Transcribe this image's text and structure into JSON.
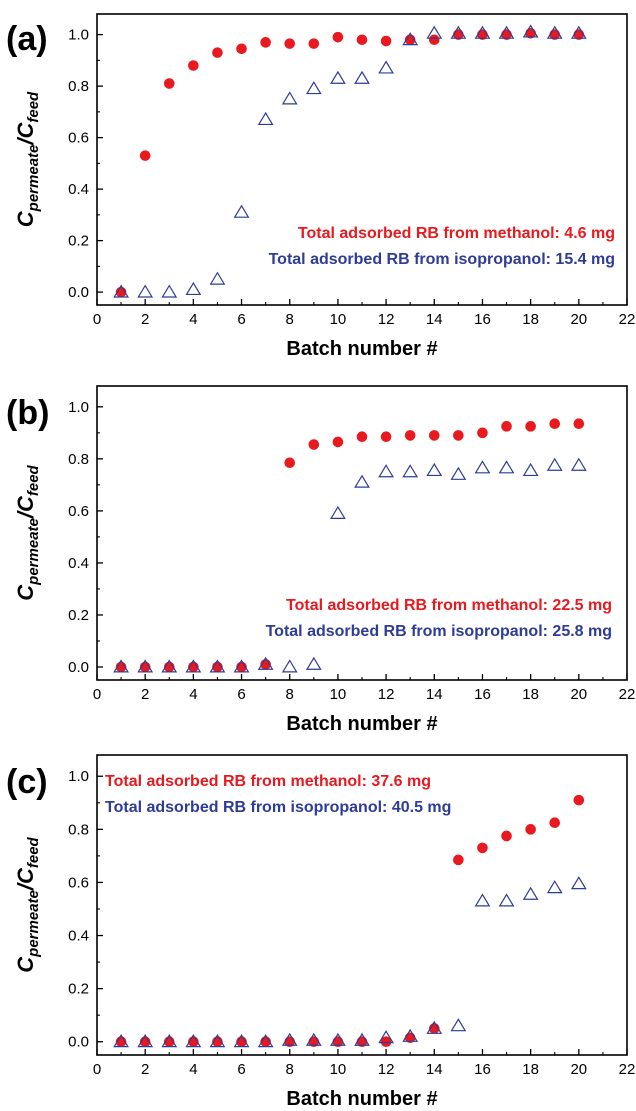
{
  "figure": {
    "series_colors": {
      "methanol": "#e8191f",
      "isopropanol": "#2e3c96"
    },
    "ylabel_main": "C",
    "ylabel_sub1": "permeate",
    "ylabel_sep": "/",
    "ylabel_main2": "C",
    "ylabel_sub2": "feed",
    "xlabel": "Batch number #"
  },
  "chart_data": [
    {
      "panel": "(a)",
      "type": "scatter",
      "xlabel": "Batch number #",
      "ylabel": "Cpermeate/Cfeed",
      "xlim": [
        0,
        22
      ],
      "ylim": [
        -0.05,
        1.08
      ],
      "xticks": [
        0,
        2,
        4,
        6,
        8,
        10,
        12,
        14,
        16,
        18,
        20,
        22
      ],
      "yticks": [
        0.0,
        0.2,
        0.4,
        0.6,
        0.8,
        1.0
      ],
      "ytick_labels": [
        "0.0",
        "0.2",
        "0.4",
        "0.6",
        "0.8",
        "1.0"
      ],
      "grid": false,
      "annotations": [
        {
          "text": "Total adsorbed RB from methanol: 4.6 mg",
          "color": "#e8191f"
        },
        {
          "text": "Total adsorbed RB from isopropanol: 15.4 mg",
          "color": "#2e3c96"
        }
      ],
      "series": [
        {
          "key": "methanol",
          "marker": "filled-circle",
          "color": "#e8191f",
          "x": [
            1,
            2,
            3,
            4,
            5,
            6,
            7,
            8,
            9,
            10,
            11,
            12,
            13,
            14,
            15,
            16,
            17,
            18,
            19,
            20
          ],
          "y": [
            0.0,
            0.53,
            0.81,
            0.88,
            0.93,
            0.945,
            0.97,
            0.965,
            0.965,
            0.99,
            0.98,
            0.975,
            0.98,
            0.98,
            1.0,
            1.0,
            1.0,
            1.005,
            1.0,
            1.0
          ]
        },
        {
          "key": "isopropanol",
          "marker": "open-triangle",
          "color": "#2e3c96",
          "x": [
            1,
            2,
            3,
            4,
            5,
            6,
            7,
            8,
            9,
            10,
            11,
            12,
            13,
            14,
            15,
            16,
            17,
            18,
            19,
            20
          ],
          "y": [
            0.0,
            0.0,
            0.0,
            0.01,
            0.05,
            0.31,
            0.67,
            0.75,
            0.79,
            0.83,
            0.83,
            0.87,
            0.98,
            1.005,
            1.005,
            1.005,
            1.005,
            1.01,
            1.005,
            1.005
          ]
        }
      ]
    },
    {
      "panel": "(b)",
      "type": "scatter",
      "xlabel": "Batch number #",
      "ylabel": "Cpermeate/Cfeed",
      "xlim": [
        0,
        22
      ],
      "ylim": [
        -0.05,
        1.08
      ],
      "xticks": [
        0,
        2,
        4,
        6,
        8,
        10,
        12,
        14,
        16,
        18,
        20,
        22
      ],
      "yticks": [
        0.0,
        0.2,
        0.4,
        0.6,
        0.8,
        1.0
      ],
      "ytick_labels": [
        "0.0",
        "0.2",
        "0.4",
        "0.6",
        "0.8",
        "1.0"
      ],
      "grid": false,
      "annotations": [
        {
          "text": "Total adsorbed RB from methanol: 22.5 mg",
          "color": "#e8191f"
        },
        {
          "text": "Total adsorbed RB from isopropanol: 25.8 mg",
          "color": "#2e3c96"
        }
      ],
      "series": [
        {
          "key": "methanol",
          "marker": "filled-circle",
          "color": "#e8191f",
          "x": [
            1,
            2,
            3,
            4,
            5,
            6,
            7,
            8,
            9,
            10,
            11,
            12,
            13,
            14,
            15,
            16,
            17,
            18,
            19,
            20
          ],
          "y": [
            0.0,
            0.0,
            0.0,
            0.0,
            0.0,
            0.0,
            0.01,
            0.785,
            0.855,
            0.865,
            0.885,
            0.885,
            0.89,
            0.89,
            0.89,
            0.9,
            0.925,
            0.925,
            0.935,
            0.935
          ]
        },
        {
          "key": "isopropanol",
          "marker": "open-triangle",
          "color": "#2e3c96",
          "x": [
            1,
            2,
            3,
            4,
            5,
            6,
            7,
            8,
            9,
            10,
            11,
            12,
            13,
            14,
            15,
            16,
            17,
            18,
            19,
            20
          ],
          "y": [
            0.0,
            0.0,
            0.0,
            0.0,
            0.0,
            0.0,
            0.01,
            0.0,
            0.01,
            0.59,
            0.71,
            0.75,
            0.75,
            0.755,
            0.74,
            0.765,
            0.765,
            0.755,
            0.775,
            0.775
          ]
        }
      ]
    },
    {
      "panel": "(c)",
      "type": "scatter",
      "xlabel": "Batch number #",
      "ylabel": "Cpermeate/Cfeed",
      "xlim": [
        0,
        22
      ],
      "ylim": [
        -0.05,
        1.08
      ],
      "xticks": [
        0,
        2,
        4,
        6,
        8,
        10,
        12,
        14,
        16,
        18,
        20,
        22
      ],
      "yticks": [
        0.0,
        0.2,
        0.4,
        0.6,
        0.8,
        1.0
      ],
      "ytick_labels": [
        "0.0",
        "0.2",
        "0.4",
        "0.6",
        "0.8",
        "1.0"
      ],
      "grid": false,
      "annotations": [
        {
          "text": "Total adsorbed RB from methanol: 37.6 mg",
          "color": "#e8191f"
        },
        {
          "text": "Total adsorbed RB from isopropanol: 40.5 mg",
          "color": "#2e3c96"
        }
      ],
      "series": [
        {
          "key": "methanol",
          "marker": "filled-circle",
          "color": "#e8191f",
          "x": [
            1,
            2,
            3,
            4,
            5,
            6,
            7,
            8,
            9,
            10,
            11,
            12,
            13,
            14,
            15,
            16,
            17,
            18,
            19,
            20
          ],
          "y": [
            0.0,
            0.0,
            0.0,
            0.0,
            0.0,
            0.0,
            0.0,
            0.0,
            0.0,
            0.0,
            0.0,
            0.0,
            0.015,
            0.05,
            0.685,
            0.73,
            0.775,
            0.8,
            0.825,
            0.91
          ]
        },
        {
          "key": "isopropanol",
          "marker": "open-triangle",
          "color": "#2e3c96",
          "x": [
            1,
            2,
            3,
            4,
            5,
            6,
            7,
            8,
            9,
            10,
            11,
            12,
            13,
            14,
            15,
            16,
            17,
            18,
            19,
            20
          ],
          "y": [
            0.0,
            0.0,
            0.0,
            0.0,
            0.0,
            0.0,
            0.0,
            0.005,
            0.005,
            0.005,
            0.005,
            0.015,
            0.02,
            0.05,
            0.06,
            0.53,
            0.53,
            0.555,
            0.58,
            0.595
          ]
        }
      ]
    }
  ]
}
